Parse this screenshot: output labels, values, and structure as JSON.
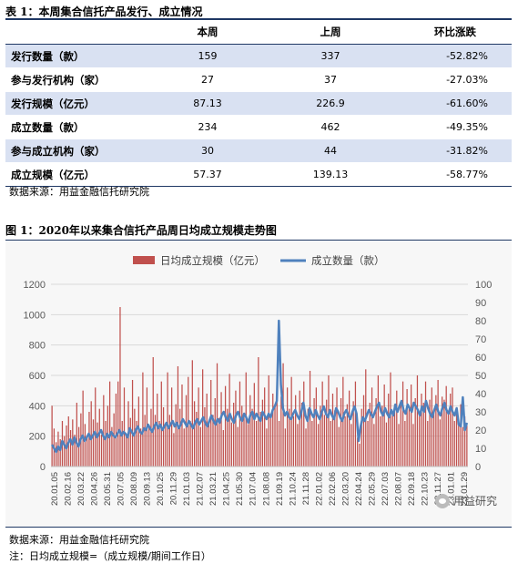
{
  "table": {
    "title": "表 1：本周集合信托产品发行、成立情况",
    "headers": [
      "",
      "本周",
      "上周",
      "环比涨跌"
    ],
    "rows": [
      {
        "label": "发行数量（款）",
        "this_week": "159",
        "last_week": "337",
        "change": "-52.82%"
      },
      {
        "label": "参与发行机构（家）",
        "this_week": "27",
        "last_week": "37",
        "change": "-27.03%"
      },
      {
        "label": "发行规模（亿元）",
        "this_week": "87.13",
        "last_week": "226.9",
        "change": "-61.60%"
      },
      {
        "label": "成立数量（款）",
        "this_week": "234",
        "last_week": "462",
        "change": "-49.35%"
      },
      {
        "label": "参与成立机构（家）",
        "this_week": "30",
        "last_week": "44",
        "change": "-31.82%"
      },
      {
        "label": "成立规模（亿元）",
        "this_week": "57.37",
        "last_week": "139.13",
        "change": "-58.77%"
      }
    ],
    "source": "数据来源：用益金融信托研究院"
  },
  "figure": {
    "title": "图 1：2020年以来集合信托产品周日均成立规模走势图",
    "source": "数据来源：用益金融信托研究院",
    "note": "注：日均成立规模=（成立规模/期间工作日）",
    "watermark": "用益研究"
  },
  "chart_data": {
    "type": "bar",
    "legend": [
      "日均成立规模（亿元）",
      "成立数量（款）"
    ],
    "legend_position": "top",
    "y_left_ticks": [
      "0",
      "200",
      "400",
      "600",
      "800",
      "1000",
      "1200"
    ],
    "y_right_ticks": [
      "0",
      "10",
      "20",
      "30",
      "40",
      "50",
      "60",
      "70",
      "80",
      "90",
      "100"
    ],
    "y_left_range": [
      0,
      1200
    ],
    "y_right_range": [
      0,
      100
    ],
    "grid": true,
    "x_tick_labels": [
      "20.01.05",
      "20.02.16",
      "20.03.22",
      "20.04.26",
      "20.05.31",
      "20.07.05",
      "20.08.09",
      "20.09.13",
      "20.10.25",
      "20.11.29",
      "21.01.03",
      "21.02.07",
      "21.03.21",
      "21.04.25",
      "21.05.30",
      "21.07.04",
      "21.08.08",
      "21.09.19",
      "21.10.24",
      "21.11.28",
      "22.01.02",
      "22.02.06",
      "22.03.20",
      "22.04.24",
      "22.05.29",
      "22.07.03",
      "22.08.07",
      "22.09.18",
      "22.10.23",
      "22.11.27",
      "23.01.01"
    ],
    "x_tick_labels_right_axis": [
      "23.01.29"
    ],
    "series": [
      {
        "name": "日均成立规模（亿元）",
        "axis": "left",
        "values": [
          400,
          250,
          160,
          230,
          180,
          300,
          200,
          270,
          330,
          240,
          310,
          210,
          420,
          260,
          350,
          500,
          280,
          200,
          360,
          430,
          310,
          520,
          290,
          380,
          210,
          470,
          300,
          400,
          560,
          260,
          350,
          480,
          560,
          1050,
          300,
          520,
          210,
          430,
          320,
          570,
          380,
          300,
          460,
          250,
          620,
          340,
          520,
          270,
          380,
          720,
          340,
          480,
          300,
          560,
          390,
          280,
          620,
          340,
          520,
          220,
          410,
          660,
          380,
          540,
          250,
          470,
          590,
          300,
          700,
          430,
          360,
          520,
          260,
          640,
          390,
          480,
          300,
          570,
          340,
          450,
          680,
          320,
          490,
          240,
          530,
          380,
          610,
          290,
          420,
          500,
          260,
          560,
          400,
          330,
          620,
          280,
          470,
          380,
          550,
          300,
          720,
          360,
          440,
          520,
          250,
          600,
          330,
          480,
          390,
          540,
          300,
          460,
          680,
          250,
          520,
          380,
          590,
          330,
          470,
          280,
          500,
          420,
          560,
          250,
          380,
          630,
          300,
          450,
          520,
          280,
          400,
          560,
          340,
          440,
          600,
          300,
          480,
          370,
          520,
          260,
          450,
          590,
          330,
          410,
          500,
          280,
          430,
          560,
          190,
          150,
          380,
          470,
          640,
          300,
          420,
          520,
          280,
          450,
          600,
          330,
          400,
          540,
          290,
          480,
          620,
          350,
          410,
          500,
          280,
          430,
          560,
          300,
          510,
          400,
          540,
          280,
          450,
          600,
          330,
          480,
          420,
          560,
          300,
          440,
          520,
          370,
          470,
          570,
          310,
          460,
          440,
          530,
          350,
          480,
          520,
          300,
          360,
          290,
          410,
          260,
          330,
          270
        ],
        "values_note": "approximate, read from bars"
      },
      {
        "name": "成立数量（款）",
        "axis": "right",
        "values": [
          12,
          10,
          8,
          11,
          9,
          14,
          12,
          10,
          13,
          15,
          12,
          16,
          13,
          11,
          15,
          17,
          14,
          16,
          18,
          15,
          17,
          19,
          16,
          18,
          20,
          17,
          15,
          18,
          16,
          19,
          17,
          16,
          18,
          20,
          17,
          19,
          18,
          16,
          21,
          19,
          17,
          20,
          22,
          19,
          18,
          21,
          20,
          23,
          21,
          19,
          22,
          24,
          21,
          23,
          20,
          22,
          24,
          21,
          23,
          25,
          22,
          24,
          21,
          23,
          26,
          24,
          22,
          25,
          23,
          21,
          24,
          26,
          23,
          25,
          27,
          24,
          22,
          25,
          28,
          25,
          23,
          26,
          24,
          28,
          30,
          27,
          25,
          29,
          26,
          24,
          28,
          30,
          27,
          25,
          29,
          27,
          24,
          28,
          30,
          26,
          29,
          27,
          25,
          30,
          28,
          26,
          29,
          27,
          31,
          33,
          36,
          80,
          45,
          32,
          28,
          30,
          27,
          26,
          29,
          31,
          28,
          26,
          30,
          35,
          28,
          25,
          32,
          29,
          27,
          31,
          28,
          26,
          30,
          33,
          29,
          27,
          31,
          28,
          26,
          32,
          30,
          27,
          25,
          29,
          31,
          28,
          26,
          30,
          33,
          29,
          14,
          22,
          27,
          25,
          28,
          31,
          29,
          27,
          30,
          33,
          35,
          30,
          28,
          32,
          29,
          27,
          31,
          28,
          34,
          30,
          33,
          36,
          31,
          29,
          34,
          32,
          30,
          35,
          33,
          31,
          28,
          33,
          30,
          36,
          32,
          29,
          27,
          31,
          34,
          30,
          28,
          32,
          35,
          31,
          29,
          33,
          30,
          28,
          32,
          23,
          22,
          38,
          20,
          24
        ],
        "values_note": "approximate, read from line"
      }
    ]
  }
}
